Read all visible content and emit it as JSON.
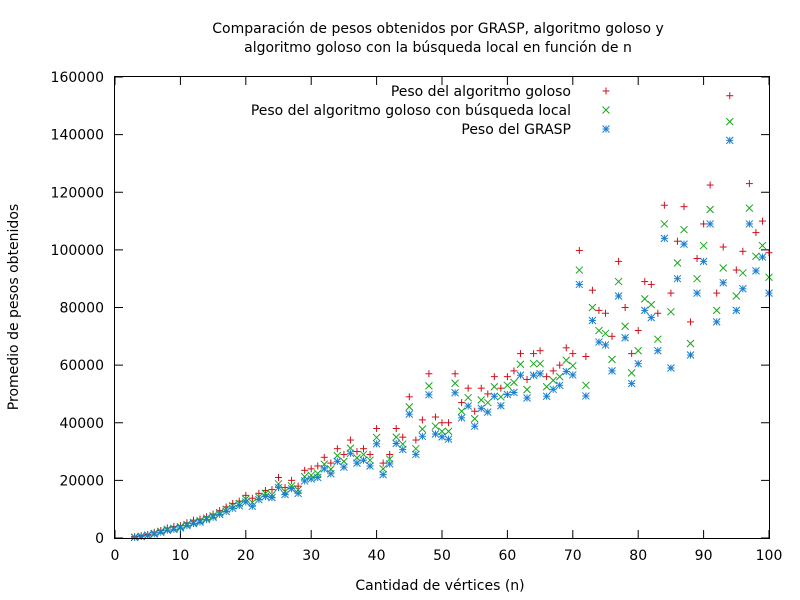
{
  "chart_data": {
    "type": "scatter",
    "title_lines": [
      "Comparación de pesos obtenidos por GRASP, algoritmo goloso y",
      "algoritmo goloso con la búsqueda local en función de n"
    ],
    "xlabel": "Cantidad de vértices (n)",
    "ylabel": "Promedio de pesos obtenidos",
    "xlim": [
      0,
      100
    ],
    "ylim": [
      0,
      160000
    ],
    "xticks": [
      0,
      10,
      20,
      30,
      40,
      50,
      60,
      70,
      80,
      90,
      100
    ],
    "yticks": [
      0,
      20000,
      40000,
      60000,
      80000,
      100000,
      120000,
      140000,
      160000
    ],
    "grid": false,
    "legend_position": "top-right",
    "x": [
      3,
      4,
      5,
      6,
      7,
      8,
      9,
      10,
      11,
      12,
      13,
      14,
      15,
      16,
      17,
      18,
      19,
      20,
      21,
      22,
      23,
      24,
      25,
      26,
      27,
      28,
      29,
      30,
      31,
      32,
      33,
      34,
      35,
      36,
      37,
      38,
      39,
      40,
      41,
      42,
      43,
      44,
      45,
      46,
      47,
      48,
      49,
      50,
      51,
      52,
      53,
      54,
      55,
      56,
      57,
      58,
      59,
      60,
      61,
      62,
      63,
      64,
      65,
      66,
      67,
      68,
      69,
      70,
      71,
      72,
      73,
      74,
      75,
      76,
      77,
      78,
      79,
      80,
      81,
      82,
      83,
      84,
      85,
      86,
      87,
      88,
      89,
      90,
      91,
      92,
      93,
      94,
      95,
      96,
      97,
      98,
      99,
      100
    ],
    "series": [
      {
        "name": "Peso del algoritmo goloso",
        "marker": "+",
        "color": "#d0101c",
        "values": [
          500,
          800,
          1200,
          2000,
          2600,
          3500,
          4000,
          4300,
          5300,
          6200,
          6600,
          7400,
          8300,
          9500,
          10800,
          12000,
          12800,
          14800,
          13800,
          15500,
          16500,
          16800,
          21000,
          17500,
          20000,
          18000,
          23500,
          24000,
          25000,
          28000,
          26000,
          31000,
          29000,
          34000,
          30000,
          31000,
          29000,
          38000,
          26000,
          29000,
          38000,
          35000,
          49000,
          34000,
          41000,
          57000,
          42000,
          40000,
          40000,
          57000,
          47000,
          52000,
          44000,
          52000,
          50000,
          56000,
          52000,
          56000,
          58000,
          64000,
          55000,
          64000,
          65000,
          56000,
          58000,
          60000,
          66000,
          64000,
          99800,
          63000,
          86000,
          79000,
          78000,
          70000,
          96000,
          80000,
          64000,
          72000,
          89000,
          88000,
          78000,
          115500,
          85000,
          103000,
          115000,
          75000,
          97000,
          109000,
          122500,
          85000,
          101000,
          153500,
          93000,
          99500,
          123000,
          106000,
          110000,
          99000
        ]
      },
      {
        "name": "Peso del algoritmo goloso con búsqueda local",
        "marker": "x",
        "color": "#16a81a",
        "values": [
          300,
          600,
          1000,
          1600,
          2300,
          3000,
          3300,
          3900,
          4700,
          5400,
          6000,
          6900,
          7700,
          8800,
          10000,
          11200,
          12000,
          13500,
          12300,
          14200,
          15500,
          15000,
          18800,
          16100,
          18100,
          16700,
          21300,
          21800,
          22400,
          25600,
          23900,
          28600,
          26600,
          31200,
          27800,
          29000,
          27000,
          34900,
          24000,
          27400,
          35000,
          32600,
          45500,
          31000,
          37800,
          52800,
          38800,
          37000,
          37000,
          53700,
          44000,
          48700,
          41400,
          47900,
          47000,
          52500,
          49000,
          53000,
          54000,
          60300,
          51500,
          60500,
          60500,
          52500,
          54700,
          56000,
          61700,
          59800,
          93000,
          53000,
          80000,
          72000,
          71000,
          62000,
          89000,
          73500,
          57300,
          65000,
          83000,
          81000,
          69000,
          109000,
          78500,
          95500,
          107000,
          67500,
          90000,
          101500,
          114000,
          79000,
          93700,
          144500,
          84000,
          92000,
          114500,
          97800,
          101500,
          90500
        ]
      },
      {
        "name": "Peso del GRASP",
        "marker": "*",
        "color": "#1a7fd0",
        "values": [
          200,
          500,
          900,
          1400,
          2000,
          2700,
          3000,
          3500,
          4300,
          5000,
          5500,
          6400,
          7200,
          8200,
          9200,
          10300,
          11200,
          12500,
          11000,
          13300,
          14400,
          14000,
          17500,
          15100,
          17100,
          15500,
          19800,
          20500,
          21000,
          24000,
          22300,
          26600,
          24600,
          29400,
          26000,
          27000,
          25000,
          32700,
          22000,
          25700,
          32800,
          30700,
          43000,
          29000,
          35300,
          49700,
          36100,
          35100,
          34300,
          50400,
          41700,
          45800,
          38800,
          45000,
          43700,
          49200,
          45900,
          49800,
          50500,
          56500,
          48600,
          56500,
          57000,
          49200,
          51600,
          53000,
          57800,
          56600,
          88000,
          49300,
          75500,
          68000,
          67000,
          58000,
          84000,
          69500,
          53600,
          60500,
          79000,
          76500,
          65000,
          104000,
          59000,
          90000,
          102000,
          63500,
          85000,
          96000,
          109000,
          75000,
          88600,
          138000,
          79000,
          86500,
          109000,
          92700,
          97500,
          85000
        ]
      }
    ]
  }
}
